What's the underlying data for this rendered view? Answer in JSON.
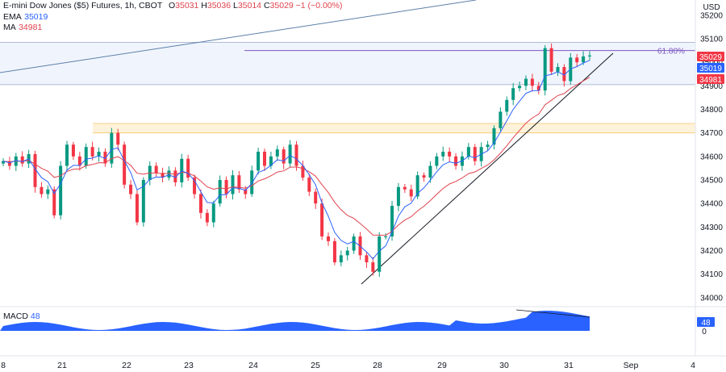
{
  "header": {
    "symbol": "E-mini Dow Jones ($5) Futures, 1h, CBOT",
    "o_label": "O",
    "o_value": "35031",
    "h_label": "H",
    "h_value": "35036",
    "l_label": "L",
    "l_value": "35014",
    "c_label": "C",
    "c_value": "35029",
    "change": "−1 (−0.00%)"
  },
  "indicators": {
    "ema": {
      "label": "EMA",
      "value": "35019",
      "color": "#2962ff"
    },
    "ma": {
      "label": "MA",
      "value": "34981",
      "color": "#e0434e"
    }
  },
  "macd": {
    "label": "MACD",
    "value": "48",
    "axis_value": "48",
    "zero_label": "0",
    "color": "#2962ff"
  },
  "currency": "USD",
  "fib_label": "61.80%",
  "colors": {
    "up": "#089981",
    "down": "#f23645",
    "ema": "#2962ff",
    "ma": "#e0434e",
    "fib": "#7e57c2",
    "zone": "#f5c56b",
    "macd": "#2962ff",
    "trend": "#131722"
  },
  "chart_data": {
    "type": "candlestick",
    "y_ticks": [
      35200,
      35100,
      35000,
      34900,
      34800,
      34700,
      34600,
      34500,
      34400,
      34300,
      34200,
      34100,
      34000
    ],
    "ylim": [
      33950,
      35230
    ],
    "x_ticks": [
      "8",
      "21",
      "22",
      "23",
      "24",
      "25",
      "28",
      "29",
      "30",
      "31",
      "Sep",
      "4"
    ],
    "price_badges": [
      {
        "label": "35029",
        "value": 35029,
        "color": "#f23645"
      },
      {
        "label": "35019",
        "value": 35019,
        "color": "#2962ff"
      },
      {
        "label": "34981",
        "value": 34981,
        "color": "#f23645"
      }
    ],
    "fib_level": {
      "label": "61.80%",
      "value": 35050
    },
    "resistance_zone": [
      34700,
      34740
    ],
    "range_box": [
      34905,
      35085
    ],
    "close_path": [
      34580,
      34560,
      34600,
      34570,
      34610,
      34470,
      34440,
      34460,
      34350,
      34560,
      34650,
      34600,
      34560,
      34640,
      34600,
      34620,
      34570,
      34700,
      34650,
      34480,
      34440,
      34320,
      34500,
      34560,
      34530,
      34510,
      34540,
      34490,
      34590,
      34510,
      34440,
      34360,
      34320,
      34400,
      34500,
      34440,
      34520,
      34460,
      34440,
      34540,
      34620,
      34560,
      34600,
      34630,
      34570,
      34650,
      34560,
      34510,
      34450,
      34400,
      34260,
      34240,
      34150,
      34180,
      34200,
      34260,
      34180,
      34150,
      34110,
      34260,
      34260,
      34390,
      34470,
      34460,
      34430,
      34520,
      34510,
      34560,
      34600,
      34620,
      34600,
      34560,
      34600,
      34640,
      34580,
      34640,
      34650,
      34720,
      34790,
      34840,
      34890,
      34900,
      34930,
      34900,
      34880,
      35060,
      34960,
      34980,
      34920,
      35020,
      35000,
      35025,
      35029
    ],
    "ema_value": 35019,
    "ma_value": 34981,
    "macd_value": 48
  }
}
